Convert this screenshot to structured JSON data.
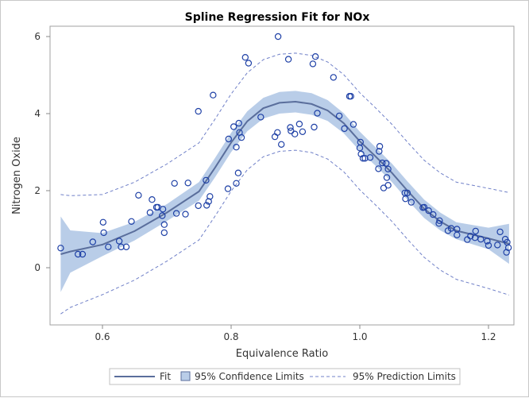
{
  "chart_data": {
    "type": "scatter",
    "title": "Spline Regression Fit for NOx",
    "xlabel": "Equivalence Ratio",
    "ylabel": "Nitrogen Oxide",
    "xlim": [
      0.52,
      1.24
    ],
    "ylim": [
      -1.45,
      6.3
    ],
    "xticks": [
      "0.6",
      "0.8",
      "1.0",
      "1.2"
    ],
    "yticks": [
      "0",
      "2",
      "4",
      "6"
    ],
    "grid": false,
    "legend_position": "bottom",
    "legend": [
      "Fit",
      "95% Confidence Limits",
      "95% Prediction Limits"
    ],
    "colors": {
      "marker": "#1e40a6",
      "fit": "#5a6e9c",
      "confidence": "#b9cde8",
      "prediction": "#7080c8"
    },
    "points": {
      "x": [
        0.535,
        0.562,
        0.569,
        0.585,
        0.601,
        0.602,
        0.609,
        0.626,
        0.629,
        0.637,
        0.645,
        0.656,
        0.674,
        0.677,
        0.684,
        0.686,
        0.693,
        0.694,
        0.696,
        0.696,
        0.712,
        0.715,
        0.729,
        0.733,
        0.749,
        0.761,
        0.762,
        0.765,
        0.767,
        0.795,
        0.796,
        0.873,
        0.822,
        0.827,
        0.889,
        0.931,
        0.927,
        0.959,
        0.772,
        0.749,
        0.984,
        0.986,
        0.846,
        0.934,
        0.968,
        0.99,
        0.976,
        0.812,
        0.804,
        0.813,
        0.816,
        0.808,
        0.872,
        0.868,
        0.892,
        0.893,
        0.899,
        0.906,
        0.911,
        0.929,
        0.878,
        1.001,
        1.0,
        1.002,
        1.005,
        1.008,
        0.811,
        0.808,
        1.016,
        1.031,
        1.03,
        1.035,
        1.041,
        1.044,
        1.029,
        1.042,
        1.044,
        1.037,
        1.07,
        1.074,
        1.071,
        1.08,
        1.098,
        1.1,
        1.107,
        1.114,
        1.124,
        1.123,
        1.137,
        1.142,
        1.151,
        1.151,
        1.167,
        1.172,
        1.18,
        1.179,
        1.188,
        1.198,
        1.2,
        1.214,
        1.218,
        1.226,
        1.229,
        1.231,
        1.228
      ],
      "y": [
        0.51,
        0.35,
        0.35,
        0.67,
        1.18,
        0.91,
        0.54,
        0.69,
        0.54,
        0.54,
        1.2,
        1.88,
        1.43,
        1.77,
        1.57,
        1.57,
        1.35,
        1.52,
        1.12,
        0.91,
        2.19,
        1.41,
        1.39,
        2.2,
        1.61,
        2.27,
        1.62,
        1.72,
        1.85,
        2.05,
        3.34,
        6.0,
        5.46,
        5.31,
        5.41,
        5.48,
        5.29,
        4.94,
        4.48,
        4.06,
        4.45,
        4.45,
        3.91,
        4.01,
        3.94,
        3.72,
        3.61,
        3.75,
        3.66,
        3.51,
        3.38,
        3.13,
        3.51,
        3.4,
        3.64,
        3.55,
        3.47,
        3.73,
        3.53,
        3.65,
        3.2,
        3.26,
        3.11,
        2.95,
        2.84,
        2.84,
        2.46,
        2.19,
        2.86,
        3.15,
        3.02,
        2.72,
        2.71,
        2.56,
        2.57,
        2.34,
        2.14,
        2.07,
        1.94,
        1.94,
        1.79,
        1.7,
        1.56,
        1.57,
        1.48,
        1.38,
        1.22,
        1.15,
        0.96,
        1.02,
        1.0,
        0.85,
        0.73,
        0.82,
        0.95,
        0.78,
        0.74,
        0.69,
        0.58,
        0.59,
        0.93,
        0.74,
        0.66,
        0.52,
        0.4
      ]
    },
    "curve_x": [
      0.535,
      0.55,
      0.6,
      0.65,
      0.7,
      0.75,
      0.775,
      0.8,
      0.825,
      0.85,
      0.875,
      0.9,
      0.925,
      0.95,
      0.975,
      1.0,
      1.025,
      1.05,
      1.075,
      1.1,
      1.125,
      1.15,
      1.2,
      1.232
    ],
    "fit": [
      0.35,
      0.42,
      0.6,
      0.95,
      1.43,
      1.98,
      2.6,
      3.25,
      3.8,
      4.14,
      4.28,
      4.31,
      4.25,
      4.08,
      3.75,
      3.28,
      2.88,
      2.46,
      1.98,
      1.53,
      1.2,
      0.96,
      0.76,
      0.62
    ],
    "cl_lower": [
      -0.63,
      -0.13,
      0.3,
      0.71,
      1.21,
      1.74,
      2.35,
      3.0,
      3.54,
      3.87,
      4.0,
      4.03,
      3.97,
      3.81,
      3.49,
      3.03,
      2.64,
      2.22,
      1.74,
      1.29,
      0.97,
      0.74,
      0.48,
      0.1
    ],
    "cl_upper": [
      1.33,
      0.97,
      0.9,
      1.19,
      1.65,
      2.22,
      2.85,
      3.5,
      4.06,
      4.41,
      4.56,
      4.59,
      4.53,
      4.35,
      4.01,
      3.53,
      3.12,
      2.7,
      2.22,
      1.77,
      1.43,
      1.18,
      1.04,
      1.14
    ],
    "pl_lower": [
      -1.2,
      -1.03,
      -0.7,
      -0.32,
      0.17,
      0.72,
      1.34,
      1.99,
      2.54,
      2.88,
      3.02,
      3.05,
      2.99,
      2.82,
      2.49,
      2.02,
      1.62,
      1.2,
      0.72,
      0.27,
      -0.06,
      -0.3,
      -0.54,
      -0.71
    ],
    "pl_upper": [
      1.9,
      1.87,
      1.9,
      2.22,
      2.69,
      3.24,
      3.86,
      4.51,
      5.06,
      5.4,
      5.54,
      5.57,
      5.51,
      5.34,
      5.01,
      4.54,
      4.14,
      3.72,
      3.24,
      2.79,
      2.46,
      2.22,
      2.06,
      1.95
    ]
  }
}
